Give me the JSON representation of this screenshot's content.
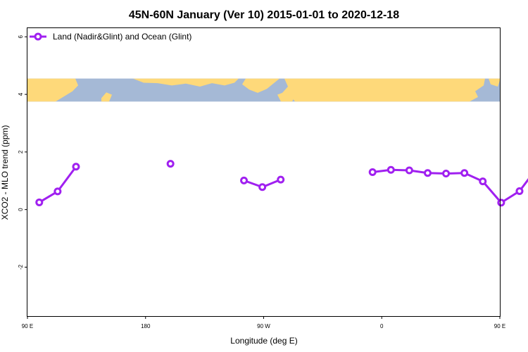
{
  "chart_data": {
    "type": "line",
    "title": "45N-60N January (Ver 10)   2015-01-01 to 2020-12-18",
    "xlabel": "Longitude (deg E)",
    "ylabel": "XCO2 - MLO trend (ppm)",
    "xlim": [
      90,
      450
    ],
    "ylim": [
      -3.7,
      6.3
    ],
    "x_ticks": [
      {
        "value": 90,
        "label": "90 E"
      },
      {
        "value": 180,
        "label": "180"
      },
      {
        "value": 270,
        "label": "90 W"
      },
      {
        "value": 360,
        "label": "0"
      },
      {
        "value": 450,
        "label": "90 E"
      },
      {
        "value": 540,
        "label": "180"
      }
    ],
    "y_ticks": [
      {
        "value": -2,
        "label": "-2"
      },
      {
        "value": 0,
        "label": "0"
      },
      {
        "value": 2,
        "label": "2"
      },
      {
        "value": 4,
        "label": "4"
      },
      {
        "value": 6,
        "label": "6"
      }
    ],
    "map_strip": {
      "y_from": 3.75,
      "y_to": 4.55,
      "ocean_color": "#a5b9d6",
      "land_color": "#fed97a"
    },
    "legend": {
      "placement": "top-left"
    },
    "grid": false,
    "series": [
      {
        "name": "Land (Nadir&Glint) and Ocean (Glint)",
        "color": "#a020f0",
        "segments": [
          [
            [
              99,
              0.25
            ],
            [
              113,
              0.63
            ],
            [
              127,
              1.49
            ]
          ],
          [
            [
              199,
              1.59
            ]
          ],
          [
            [
              255,
              1.01
            ],
            [
              269,
              0.78
            ],
            [
              283,
              1.04
            ]
          ],
          [
            [
              353,
              1.3
            ],
            [
              367,
              1.38
            ],
            [
              381,
              1.36
            ],
            [
              395,
              1.27
            ],
            [
              409,
              1.25
            ],
            [
              423,
              1.27
            ],
            [
              437,
              0.98
            ],
            [
              451,
              0.24
            ],
            [
              465,
              0.64
            ],
            [
              479,
              1.49
            ]
          ]
        ]
      }
    ]
  }
}
